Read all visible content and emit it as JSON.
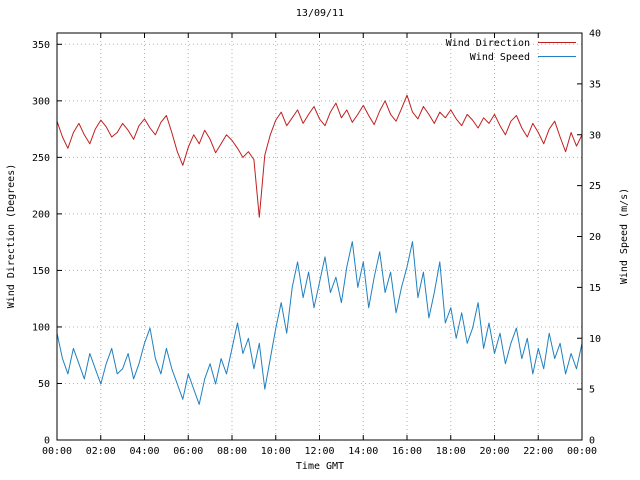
{
  "title": "13/09/11",
  "axes": {
    "x_label": "Time GMT",
    "y_left_label": "Wind Direction (Degrees)",
    "y_right_label": "Wind Speed (m/s)"
  },
  "chart_data": {
    "type": "line",
    "title": "13/09/11",
    "xlabel": "Time GMT",
    "x_unit": "hours",
    "x_range": [
      0,
      24
    ],
    "x_step_hours": 0.25,
    "x_tick_labels": [
      "00:00",
      "02:00",
      "04:00",
      "06:00",
      "08:00",
      "10:00",
      "12:00",
      "14:00",
      "16:00",
      "18:00",
      "20:00",
      "22:00",
      "00:00"
    ],
    "grid": true,
    "legend_position": "top-right-inside",
    "y_left": {
      "label": "Wind Direction (Degrees)",
      "range": [
        0,
        360
      ],
      "ticks": [
        0,
        50,
        100,
        150,
        200,
        250,
        300,
        350
      ]
    },
    "y_right": {
      "label": "Wind Speed (m/s)",
      "range": [
        0,
        40
      ],
      "ticks": [
        0,
        5,
        10,
        15,
        20,
        25,
        30,
        35,
        40
      ]
    },
    "series": [
      {
        "name": "Wind Direction",
        "axis": "left",
        "color": "#c02020",
        "values": [
          282,
          268,
          258,
          272,
          280,
          270,
          262,
          275,
          283,
          277,
          268,
          272,
          280,
          274,
          266,
          278,
          284,
          276,
          270,
          281,
          287,
          272,
          255,
          243,
          259,
          270,
          262,
          274,
          266,
          254,
          262,
          270,
          265,
          258,
          250,
          255,
          248,
          197,
          252,
          270,
          283,
          290,
          278,
          285,
          292,
          280,
          288,
          295,
          284,
          278,
          290,
          298,
          285,
          292,
          281,
          288,
          296,
          287,
          279,
          291,
          300,
          288,
          282,
          293,
          305,
          290,
          284,
          295,
          288,
          280,
          290,
          285,
          292,
          284,
          278,
          288,
          283,
          276,
          285,
          280,
          288,
          278,
          270,
          282,
          287,
          276,
          268,
          280,
          272,
          262,
          275,
          282,
          268,
          255,
          272,
          260,
          270
        ]
      },
      {
        "name": "Wind Speed",
        "axis": "right",
        "color": "#2080c0",
        "values": [
          10.5,
          8,
          6.5,
          9,
          7.5,
          6,
          8.5,
          7,
          5.5,
          7.5,
          9,
          6.5,
          7,
          8.5,
          6,
          7.5,
          9.5,
          11,
          8,
          6.5,
          9,
          7,
          5.5,
          4,
          6.5,
          5,
          3.5,
          6,
          7.5,
          5.5,
          8,
          6.5,
          9,
          11.5,
          8.5,
          10,
          7,
          9.5,
          5,
          8,
          11,
          13.5,
          10.5,
          15,
          17.5,
          14,
          16.5,
          13,
          15.5,
          18,
          14.5,
          16,
          13.5,
          17,
          19.5,
          15,
          17.5,
          13,
          16,
          18.5,
          14.5,
          16.5,
          12.5,
          15,
          17,
          19.5,
          14,
          16.5,
          12,
          14.5,
          17.5,
          11.5,
          13,
          10,
          12.5,
          9.5,
          11,
          13.5,
          9,
          11.5,
          8.5,
          10.5,
          7.5,
          9.5,
          11,
          8,
          10,
          6.5,
          9,
          7,
          10.5,
          8,
          9.5,
          6.5,
          8.5,
          7,
          9.5
        ]
      }
    ]
  }
}
